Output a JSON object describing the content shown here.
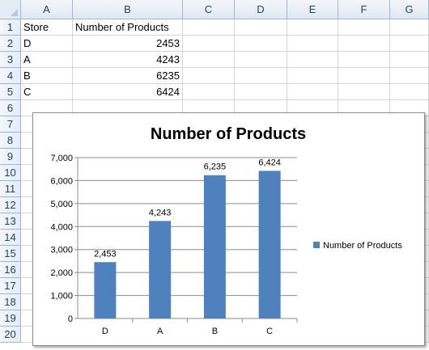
{
  "sheet": {
    "columns": [
      "A",
      "B",
      "C",
      "D",
      "E",
      "F",
      "G"
    ],
    "rows": [
      "1",
      "2",
      "3",
      "4",
      "5",
      "6",
      "7",
      "8",
      "9",
      "10",
      "11",
      "12",
      "13",
      "14",
      "15",
      "16",
      "17",
      "18",
      "19",
      "20"
    ],
    "header_row": {
      "store": "Store",
      "count": "Number of Products"
    },
    "data_rows": [
      {
        "store": "D",
        "count": "2453"
      },
      {
        "store": "A",
        "count": "4243"
      },
      {
        "store": "B",
        "count": "6235"
      },
      {
        "store": "C",
        "count": "6424"
      }
    ]
  },
  "chart_data": {
    "type": "bar",
    "title": "Number of Products",
    "categories": [
      "D",
      "A",
      "B",
      "C"
    ],
    "series": [
      {
        "name": "Number of Products",
        "values": [
          2453,
          4243,
          6235,
          6424
        ],
        "color": "#4f81bd"
      }
    ],
    "data_labels": [
      "2,453",
      "4,243",
      "6,235",
      "6,424"
    ],
    "yticks": [
      "0",
      "1,000",
      "2,000",
      "3,000",
      "4,000",
      "5,000",
      "6,000",
      "7,000"
    ],
    "ylim": [
      0,
      7000
    ],
    "legend_position": "right",
    "grid": true
  }
}
